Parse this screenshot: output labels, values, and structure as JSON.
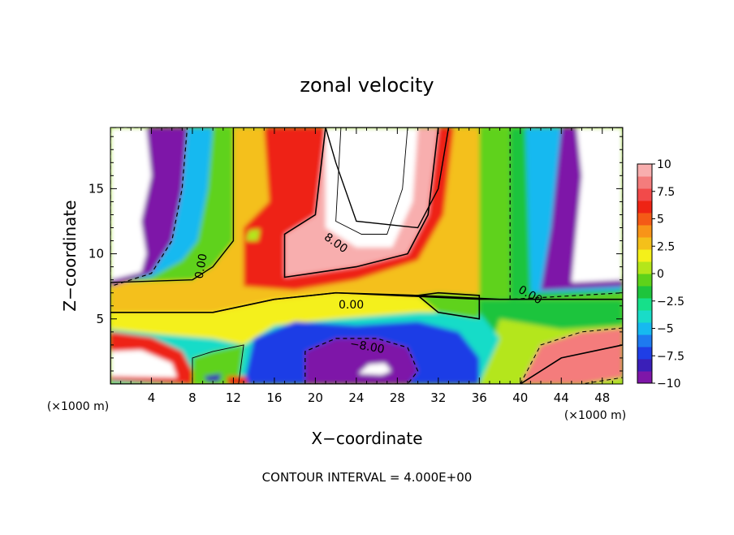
{
  "chart_data": {
    "type": "heatmap",
    "title": "zonal velocity",
    "xlabel": "X−coordinate",
    "ylabel": "Z−coordinate",
    "x_unit_left": "(×1000 m)",
    "x_unit_right": "(×1000 m)",
    "footer": "CONTOUR INTERVAL = 4.000E+00",
    "x_ticks": [
      4,
      8,
      12,
      16,
      20,
      24,
      28,
      32,
      36,
      40,
      44,
      48
    ],
    "y_ticks": [
      5,
      10,
      15
    ],
    "xlim": [
      0,
      50
    ],
    "ylim": [
      0,
      19.7
    ],
    "colorbar": {
      "min": -10,
      "max": 10,
      "labels": [
        "10",
        "7.5",
        "5",
        "2.5",
        "0",
        "−2.5",
        "−5",
        "−7.5",
        "−10"
      ],
      "colors": [
        "#7e16a8",
        "#3a1fb8",
        "#1f3ee6",
        "#1e7af0",
        "#16b9f0",
        "#19dcc8",
        "#16e08a",
        "#1ec43c",
        "#5ed21a",
        "#b4e61a",
        "#f4f01a",
        "#f4c01a",
        "#f89418",
        "#f45a16",
        "#ee2414",
        "#f24a4a",
        "#f47c7c",
        "#f8aeae"
      ]
    },
    "contour_labels": [
      {
        "text": "8.00",
        "x": 21.8,
        "y": 10.6,
        "rot": 35
      },
      {
        "text": "0.00",
        "x": 9.2,
        "y": 9.0,
        "rot": -80
      },
      {
        "text": "0.00",
        "x": 23.5,
        "y": 5.8,
        "rot": 0
      },
      {
        "text": "0.00",
        "x": 40.8,
        "y": 6.6,
        "rot": 30
      },
      {
        "text": "−8.00",
        "x": 25.0,
        "y": 2.6,
        "rot": 10
      }
    ],
    "regions": [
      {
        "v": 2.2,
        "pts": [
          [
            0,
            5.5
          ],
          [
            10,
            5.5
          ],
          [
            16,
            6.5
          ],
          [
            22,
            7.0
          ],
          [
            30,
            6.8
          ],
          [
            38,
            6.5
          ],
          [
            44,
            6.5
          ],
          [
            50,
            6.5
          ],
          [
            50,
            3.0
          ],
          [
            44,
            2.0
          ],
          [
            40,
            0
          ],
          [
            0,
            0
          ]
        ]
      },
      {
        "v": -1.2,
        "pts": [
          [
            34,
            0
          ],
          [
            36,
            6.5
          ],
          [
            40,
            7.0
          ],
          [
            50,
            7.0
          ],
          [
            50,
            0
          ]
        ]
      },
      {
        "v": 0.5,
        "pts": [
          [
            36,
            0
          ],
          [
            38,
            5.0
          ],
          [
            44,
            4.2
          ],
          [
            50,
            4.5
          ],
          [
            50,
            0
          ]
        ]
      },
      {
        "v": 8.0,
        "pts": [
          [
            40,
            0
          ],
          [
            42,
            3.0
          ],
          [
            46,
            4.0
          ],
          [
            50,
            4.3
          ],
          [
            50,
            0.5
          ],
          [
            46,
            0
          ]
        ]
      },
      {
        "v": -3.5,
        "pts": [
          [
            0,
            0
          ],
          [
            0,
            4.2
          ],
          [
            5,
            3.8
          ],
          [
            10,
            3.5
          ],
          [
            13,
            3.0
          ],
          [
            16,
            4.5
          ],
          [
            22,
            5.0
          ],
          [
            30,
            5.5
          ],
          [
            36,
            5.5
          ],
          [
            38,
            3.5
          ],
          [
            36,
            0
          ]
        ]
      },
      {
        "v": -7.0,
        "pts": [
          [
            13,
            0
          ],
          [
            14,
            3.5
          ],
          [
            18,
            4.8
          ],
          [
            24,
            4.5
          ],
          [
            30,
            4.8
          ],
          [
            34,
            4.0
          ],
          [
            36,
            2.0
          ],
          [
            36,
            0
          ]
        ]
      },
      {
        "v": -9.5,
        "pts": [
          [
            19,
            0
          ],
          [
            19,
            2.5
          ],
          [
            22,
            3.5
          ],
          [
            26,
            3.5
          ],
          [
            29,
            2.8
          ],
          [
            30,
            1.0
          ],
          [
            29,
            0
          ]
        ]
      },
      {
        "v": 12.0,
        "pts": [
          [
            24.2,
            0.8
          ],
          [
            25.2,
            1.5
          ],
          [
            26.8,
            1.6
          ],
          [
            27.4,
            1.0
          ],
          [
            26.5,
            0.7
          ]
        ]
      },
      {
        "v": 6.5,
        "pts": [
          [
            0,
            0.3
          ],
          [
            0,
            4.0
          ],
          [
            4,
            3.6
          ],
          [
            7,
            2.5
          ],
          [
            8,
            1.0
          ],
          [
            8,
            0
          ]
        ]
      },
      {
        "v": 11.0,
        "pts": [
          [
            0,
            0.6
          ],
          [
            0,
            2.5
          ],
          [
            3,
            2.6
          ],
          [
            6,
            1.6
          ],
          [
            6.5,
            0.5
          ]
        ]
      },
      {
        "v": -0.5,
        "pts": [
          [
            8,
            0
          ],
          [
            8,
            2.0
          ],
          [
            10,
            2.5
          ],
          [
            13,
            3.0
          ],
          [
            12.5,
            0
          ]
        ]
      },
      {
        "v": 6.0,
        "pts": [
          [
            11.4,
            0
          ],
          [
            11.4,
            0.6
          ],
          [
            13.2,
            0.6
          ],
          [
            13.4,
            0
          ]
        ]
      },
      {
        "v": -8.0,
        "pts": [
          [
            9.2,
            0.6
          ],
          [
            10.8,
            0.8
          ],
          [
            10.6,
            0.2
          ],
          [
            9.4,
            0.2
          ]
        ]
      },
      {
        "v": 2.8,
        "pts": [
          [
            0,
            5.5
          ],
          [
            0,
            7.8
          ],
          [
            8,
            8.0
          ],
          [
            10,
            9.0
          ],
          [
            12,
            11.0
          ],
          [
            12,
            19.7
          ],
          [
            21,
            19.7
          ],
          [
            22,
            17.0
          ],
          [
            24,
            12.5
          ],
          [
            30,
            12.0
          ],
          [
            32,
            15.0
          ],
          [
            33,
            19.7
          ],
          [
            50,
            19.7
          ],
          [
            50,
            6.5
          ],
          [
            36,
            6.5
          ],
          [
            22,
            7.0
          ],
          [
            16,
            6.5
          ],
          [
            10,
            5.5
          ]
        ]
      },
      {
        "v": -0.8,
        "pts": [
          [
            36,
            6.5
          ],
          [
            36,
            19.7
          ],
          [
            50,
            19.7
          ],
          [
            50,
            6.5
          ]
        ]
      },
      {
        "v": -0.8,
        "pts": [
          [
            0,
            7.8
          ],
          [
            0,
            19.7
          ],
          [
            12,
            19.7
          ],
          [
            12,
            11.0
          ],
          [
            10,
            9.0
          ],
          [
            8,
            8.0
          ]
        ]
      },
      {
        "v": -4.5,
        "pts": [
          [
            0,
            7.8
          ],
          [
            0,
            19.7
          ],
          [
            10,
            19.7
          ],
          [
            9.5,
            15.0
          ],
          [
            8.5,
            11.0
          ],
          [
            7,
            9.5
          ],
          [
            4,
            8.2
          ]
        ]
      },
      {
        "v": -9.0,
        "pts": [
          [
            0,
            7.5
          ],
          [
            0,
            19.7
          ],
          [
            7.5,
            19.7
          ],
          [
            7,
            15.0
          ],
          [
            6,
            11.0
          ],
          [
            4,
            8.5
          ]
        ]
      },
      {
        "v": 30.0,
        "pts": [
          [
            0,
            8.0
          ],
          [
            0,
            19.7
          ],
          [
            3.5,
            19.7
          ],
          [
            4,
            16.0
          ],
          [
            3,
            12.5
          ],
          [
            3.5,
            10.0
          ],
          [
            3,
            8.6
          ]
        ]
      },
      {
        "v": -2.0,
        "pts": [
          [
            39,
            6.5
          ],
          [
            39,
            19.7
          ],
          [
            50,
            19.7
          ],
          [
            50,
            7.0
          ]
        ]
      },
      {
        "v": -5.0,
        "pts": [
          [
            41,
            7.0
          ],
          [
            40.5,
            19.7
          ],
          [
            50,
            19.7
          ],
          [
            50,
            7.2
          ]
        ]
      },
      {
        "v": -9.0,
        "pts": [
          [
            42,
            7.2
          ],
          [
            43,
            12.0
          ],
          [
            44,
            19.7
          ],
          [
            50,
            19.7
          ],
          [
            50,
            7.5
          ]
        ]
      },
      {
        "v": 30.0,
        "pts": [
          [
            45,
            7.8
          ],
          [
            45.5,
            12.0
          ],
          [
            46,
            16.0
          ],
          [
            45.5,
            19.7
          ],
          [
            50,
            19.7
          ],
          [
            50,
            8.0
          ]
        ]
      },
      {
        "v": 6.0,
        "pts": [
          [
            13,
            7.5
          ],
          [
            13,
            12.0
          ],
          [
            15.5,
            14.0
          ],
          [
            15,
            19.7
          ],
          [
            33.5,
            19.7
          ],
          [
            32.5,
            13.0
          ],
          [
            30,
            9.5
          ],
          [
            24,
            8.0
          ],
          [
            18,
            7.2
          ]
        ]
      },
      {
        "v": 9.0,
        "pts": [
          [
            17,
            8.2
          ],
          [
            17,
            11.5
          ],
          [
            20,
            13.0
          ],
          [
            21,
            19.7
          ],
          [
            32,
            19.7
          ],
          [
            31,
            13.0
          ],
          [
            29,
            10.0
          ],
          [
            24,
            9.0
          ]
        ]
      },
      {
        "v": 12.0,
        "pts": [
          [
            21,
            12.0
          ],
          [
            21,
            19.7
          ],
          [
            30,
            19.7
          ],
          [
            29.5,
            14.0
          ],
          [
            27.5,
            10.5
          ],
          [
            24,
            10.5
          ],
          [
            22,
            11.5
          ]
        ]
      },
      {
        "v": 30.0,
        "pts": [
          [
            22,
            12.5
          ],
          [
            22.5,
            19.7
          ],
          [
            29,
            19.7
          ],
          [
            28.5,
            15.0
          ],
          [
            27,
            11.5
          ],
          [
            24.5,
            11.5
          ]
        ]
      },
      {
        "v": 1.0,
        "pts": [
          [
            13.2,
            11.0
          ],
          [
            13.5,
            11.8
          ],
          [
            14.6,
            11.9
          ],
          [
            14.4,
            11.0
          ]
        ]
      },
      {
        "v": -0.5,
        "pts": [
          [
            30,
            6.8
          ],
          [
            32,
            7.0
          ],
          [
            36,
            6.8
          ],
          [
            36,
            5.0
          ],
          [
            32,
            5.5
          ]
        ]
      }
    ]
  }
}
